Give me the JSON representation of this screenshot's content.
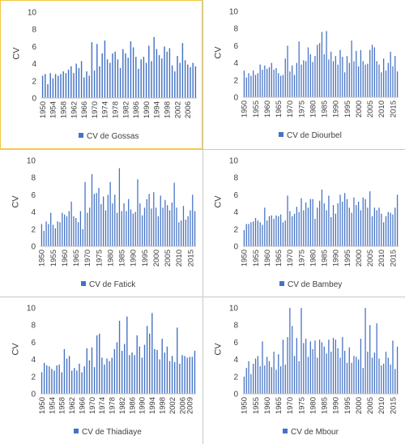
{
  "theme": {
    "bar_color": "#4472C4",
    "axis_color": "#bfbfbf",
    "text_color": "#404040",
    "highlight_border": "#f2c744"
  },
  "chart_data": [
    {
      "type": "bar",
      "legend": "CV de Gossas",
      "ylabel": "CV",
      "ylim": [
        0,
        10
      ],
      "yticks": [
        0,
        2,
        4,
        6,
        8,
        10
      ],
      "x_start": 1950,
      "x_end": 2009,
      "tick_labels": [
        "1950",
        "1954",
        "1958",
        "1962",
        "1966",
        "1970",
        "1974",
        "1978",
        "1982",
        "1986",
        "1990",
        "1994",
        "1998",
        "2002",
        "2006"
      ],
      "values": [
        2.6,
        2.8,
        1.6,
        2.9,
        2.3,
        2.8,
        2.6,
        2.8,
        3.1,
        2.9,
        3.3,
        3.7,
        2.9,
        4.0,
        3.5,
        4.3,
        2.4,
        3.1,
        2.6,
        6.5,
        3.2,
        6.3,
        3.7,
        5.2,
        6.7,
        4.5,
        4.1,
        5.2,
        5.4,
        4.5,
        3.5,
        5.7,
        5.2,
        4.7,
        6.6,
        5.9,
        4.8,
        3.4,
        4.5,
        4.8,
        4.1,
        6.1,
        4.3,
        7.1,
        5.7,
        5.0,
        4.6,
        6.0,
        5.4,
        5.8,
        3.8,
        3.1,
        4.9,
        4.1,
        6.4,
        4.4,
        3.9,
        3.6,
        4.1,
        3.7
      ]
    },
    {
      "type": "bar",
      "legend": "CV de Diourbel",
      "ylabel": "CV",
      "ylim": [
        0,
        10
      ],
      "yticks": [
        0,
        2,
        4,
        6,
        8,
        10
      ],
      "x_start": 1950,
      "x_end": 2017,
      "tick_labels": [
        "1950",
        "1955",
        "1960",
        "1965",
        "1970",
        "1975",
        "1980",
        "1985",
        "1990",
        "1995",
        "2000",
        "2005",
        "2010",
        "2015"
      ],
      "values": [
        3.1,
        2.3,
        2.8,
        2.5,
        3.1,
        2.6,
        2.8,
        3.8,
        3.2,
        3.7,
        3.3,
        3.5,
        4.0,
        3.2,
        3.4,
        2.8,
        2.5,
        2.6,
        4.5,
        6.0,
        3.0,
        3.7,
        2.6,
        4.0,
        6.5,
        3.8,
        4.3,
        4.2,
        5.8,
        5.0,
        4.1,
        4.8,
        6.1,
        6.3,
        7.6,
        5.0,
        7.7,
        4.4,
        5.3,
        4.2,
        4.8,
        3.8,
        5.5,
        4.7,
        2.9,
        4.8,
        4.0,
        6.6,
        4.2,
        5.4,
        3.6,
        5.5,
        4.2,
        3.8,
        3.9,
        5.5,
        6.1,
        5.8,
        4.2,
        3.8,
        2.9,
        4.5,
        3.1,
        4.0,
        5.3,
        3.6,
        4.8,
        3.0
      ]
    },
    {
      "type": "bar",
      "legend": "CV de Fatick",
      "ylabel": "CV",
      "ylim": [
        0,
        10
      ],
      "yticks": [
        0,
        2,
        4,
        6,
        8,
        10
      ],
      "x_start": 1950,
      "x_end": 2017,
      "tick_labels": [
        "1950",
        "1955",
        "1960",
        "1965",
        "1970",
        "1975",
        "1980",
        "1985",
        "1990",
        "1995",
        "2000",
        "2005",
        "2010",
        "2015"
      ],
      "values": [
        2.6,
        1.8,
        2.9,
        2.6,
        3.9,
        2.5,
        2.1,
        2.9,
        2.8,
        3.9,
        3.7,
        3.5,
        4.1,
        5.2,
        3.5,
        3.3,
        2.8,
        4.1,
        2.0,
        7.5,
        3.9,
        4.5,
        8.4,
        6.1,
        6.2,
        6.8,
        4.9,
        5.8,
        4.2,
        6.0,
        7.5,
        5.0,
        6.0,
        3.9,
        9.1,
        4.1,
        5.0,
        4.1,
        5.5,
        4.3,
        3.8,
        4.0,
        7.8,
        5.0,
        3.6,
        4.5,
        5.5,
        6.1,
        4.4,
        6.3,
        4.5,
        3.5,
        5.9,
        4.5,
        5.4,
        4.8,
        4.2,
        5.1,
        7.4,
        4.5,
        2.8,
        3.0,
        4.7,
        3.1,
        3.5,
        4.2,
        6.0,
        4.1
      ]
    },
    {
      "type": "bar",
      "legend": "CV de Bambey",
      "ylabel": "CV",
      "ylim": [
        0,
        10
      ],
      "yticks": [
        0,
        2,
        4,
        6,
        8,
        10
      ],
      "x_start": 1950,
      "x_end": 2017,
      "tick_labels": [
        "1950",
        "1955",
        "1960",
        "1965",
        "1970",
        "1975",
        "1980",
        "1985",
        "1990",
        "1995",
        "2000",
        "2005",
        "2010",
        "2015"
      ],
      "values": [
        1.9,
        2.6,
        2.6,
        2.8,
        2.9,
        3.3,
        3.0,
        2.8,
        2.5,
        4.5,
        3.0,
        3.5,
        3.6,
        3.2,
        3.6,
        3.5,
        3.7,
        2.8,
        3.0,
        5.9,
        4.1,
        3.5,
        3.8,
        4.6,
        4.0,
        5.6,
        4.2,
        5.1,
        4.5,
        5.5,
        5.5,
        3.2,
        4.5,
        5.3,
        6.6,
        5.0,
        4.2,
        5.9,
        3.4,
        4.8,
        3.8,
        5.0,
        6.0,
        5.2,
        6.2,
        5.5,
        4.5,
        3.9,
        5.7,
        4.8,
        5.2,
        4.2,
        5.7,
        5.5,
        4.5,
        6.4,
        3.5,
        4.5,
        4.2,
        4.5,
        3.8,
        2.8,
        3.5,
        4.0,
        3.9,
        3.7,
        4.5,
        6.0
      ]
    },
    {
      "type": "bar",
      "legend": "CV de Thiadiaye",
      "ylabel": "CV",
      "ylim": [
        0,
        10
      ],
      "yticks": [
        0,
        2,
        4,
        6,
        8,
        10
      ],
      "x_start": 1950,
      "x_end": 2011,
      "tick_labels": [
        "1950",
        "1954",
        "1958",
        "1962",
        "1966",
        "1970",
        "1974",
        "1978",
        "1982",
        "1986",
        "1990",
        "1994",
        "1998",
        "2002",
        "2006",
        "2009"
      ],
      "values": [
        2.5,
        3.6,
        3.3,
        3.2,
        2.9,
        2.7,
        3.3,
        3.4,
        2.5,
        5.2,
        4.1,
        4.4,
        2.7,
        3.0,
        2.7,
        3.5,
        2.5,
        3.2,
        5.3,
        3.9,
        5.4,
        3.1,
        6.8,
        7.0,
        4.2,
        3.4,
        4.1,
        3.8,
        4.2,
        5.2,
        6.0,
        8.5,
        5.0,
        5.8,
        9.0,
        4.5,
        4.8,
        4.5,
        6.8,
        5.5,
        4.2,
        5.7,
        7.9,
        7.0,
        9.4,
        5.2,
        5.1,
        4.0,
        6.4,
        4.8,
        5.5,
        3.8,
        4.4,
        3.7,
        7.7,
        3.5,
        4.5,
        4.4,
        4.2,
        4.3,
        4.3,
        5.0
      ]
    },
    {
      "type": "bar",
      "legend": "CV de Mbour",
      "ylabel": "CV",
      "ylim": [
        0,
        10
      ],
      "yticks": [
        0,
        2,
        4,
        6,
        8,
        10
      ],
      "x_start": 1950,
      "x_end": 2017,
      "tick_labels": [
        "1950",
        "1955",
        "1960",
        "1965",
        "1970",
        "1975",
        "1980",
        "1985",
        "1990",
        "1995",
        "2000",
        "2005",
        "2010",
        "2015"
      ],
      "values": [
        2.0,
        3.0,
        3.8,
        2.3,
        3.5,
        4.1,
        4.4,
        3.2,
        6.1,
        3.3,
        4.3,
        3.8,
        3.1,
        4.9,
        2.8,
        4.6,
        3.2,
        6.3,
        3.4,
        6.6,
        10.0,
        7.9,
        4.4,
        6.5,
        3.8,
        10.0,
        5.9,
        6.4,
        4.3,
        6.1,
        5.2,
        6.2,
        4.2,
        6.3,
        6.0,
        5.5,
        4.7,
        6.3,
        4.9,
        6.5,
        6.3,
        5.3,
        4.2,
        6.6,
        5.0,
        3.6,
        5.4,
        3.6,
        4.4,
        4.3,
        4.0,
        6.4,
        3.0,
        10.0,
        4.9,
        8.0,
        4.2,
        4.8,
        8.2,
        4.1,
        3.3,
        3.5,
        4.9,
        4.2,
        3.4,
        6.2,
        2.9,
        5.5
      ]
    }
  ]
}
